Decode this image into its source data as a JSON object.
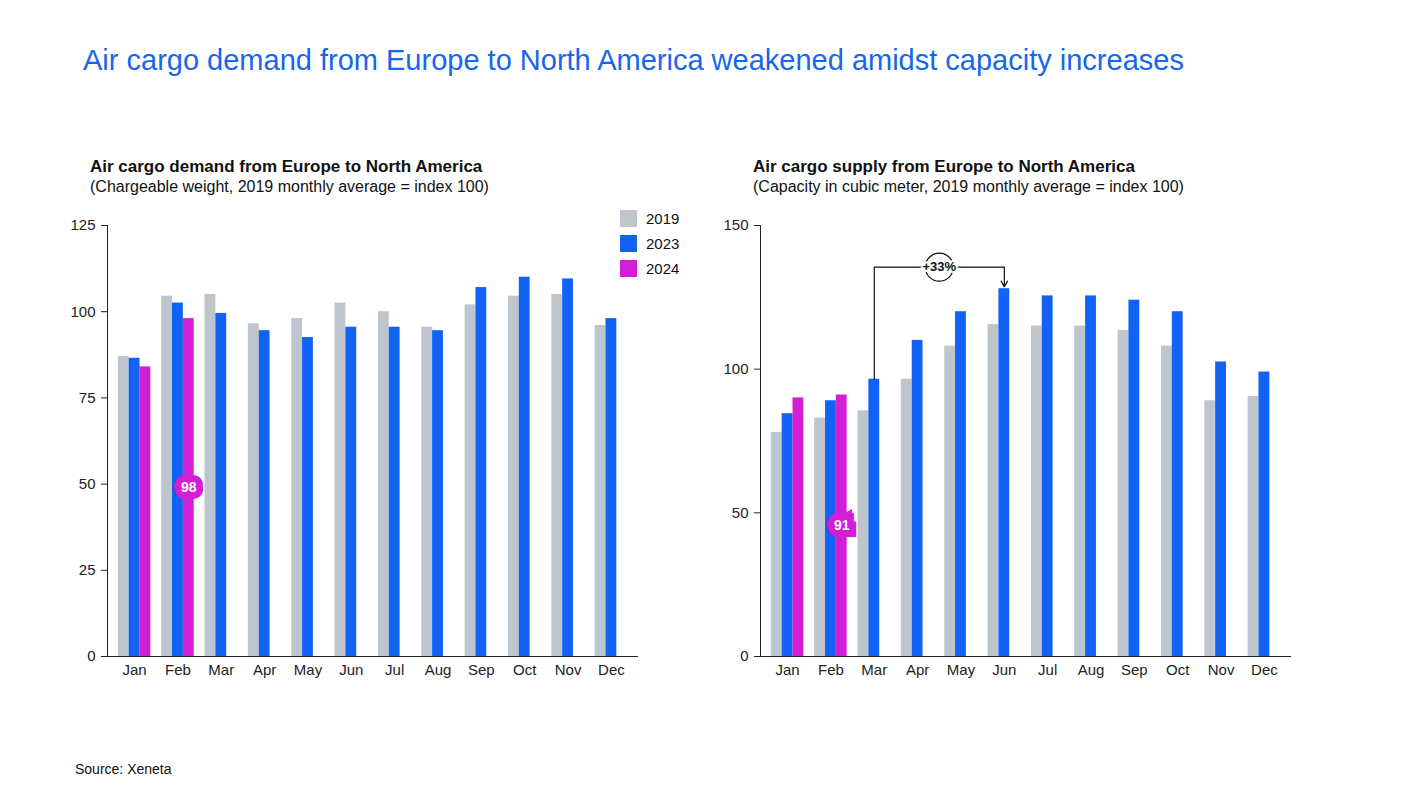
{
  "title": "Air cargo demand from Europe to North America weakened amidst capacity increases",
  "source": "Source: Xeneta",
  "chart_data": [
    {
      "type": "bar",
      "title": "Air cargo demand from Europe to North America",
      "subtitle": "(Chargeable weight, 2019 monthly average = index 100)",
      "categories": [
        "Jan",
        "Feb",
        "Mar",
        "Apr",
        "May",
        "Jun",
        "Jul",
        "Aug",
        "Sep",
        "Oct",
        "Nov",
        "Dec"
      ],
      "series": [
        {
          "name": "2019",
          "color": "#bfc5cc",
          "values": [
            87,
            104.5,
            105,
            96.5,
            98,
            102.5,
            100,
            95.5,
            102,
            104.5,
            105,
            96
          ]
        },
        {
          "name": "2023",
          "color": "#1262f5",
          "values": [
            86.5,
            102.5,
            99.5,
            94.5,
            92.5,
            95.5,
            95.5,
            94.5,
            107,
            110,
            109.5,
            98
          ]
        },
        {
          "name": "2024",
          "color": "#d21fd6",
          "values": [
            84,
            98,
            null,
            null,
            null,
            null,
            null,
            null,
            null,
            null,
            null,
            null
          ]
        }
      ],
      "ylim": [
        0,
        125
      ],
      "yticks": [
        0,
        25,
        50,
        75,
        100,
        125
      ],
      "grid": false,
      "legend": "top-right",
      "annotations": [
        {
          "text": "98",
          "category": "Feb",
          "series": "2024"
        }
      ]
    },
    {
      "type": "bar",
      "title": "Air cargo supply from Europe to North America",
      "subtitle": "(Capacity in cubic meter, 2019 monthly average = index 100)",
      "categories": [
        "Jan",
        "Feb",
        "Mar",
        "Apr",
        "May",
        "Jun",
        "Jul",
        "Aug",
        "Sep",
        "Oct",
        "Nov",
        "Dec"
      ],
      "series": [
        {
          "name": "2019",
          "color": "#bfc5cc",
          "values": [
            78,
            83,
            85.5,
            96.5,
            108,
            115.5,
            115,
            115,
            113.5,
            108,
            89,
            90.5
          ]
        },
        {
          "name": "2023",
          "color": "#1262f5",
          "values": [
            84.5,
            89,
            96.5,
            110,
            120,
            128,
            125.5,
            125.5,
            124,
            120,
            102.5,
            99
          ]
        },
        {
          "name": "2024",
          "color": "#d21fd6",
          "values": [
            90,
            91,
            null,
            null,
            null,
            null,
            null,
            null,
            null,
            null,
            null,
            null
          ]
        }
      ],
      "ylim": [
        0,
        150
      ],
      "yticks": [
        0,
        50,
        100,
        150
      ],
      "grid": false,
      "annotations": [
        {
          "text": "91",
          "category": "Feb",
          "series": "2024"
        },
        {
          "text": "+33%",
          "from": "Mar",
          "to": "Jun",
          "series": "2023"
        }
      ]
    }
  ]
}
